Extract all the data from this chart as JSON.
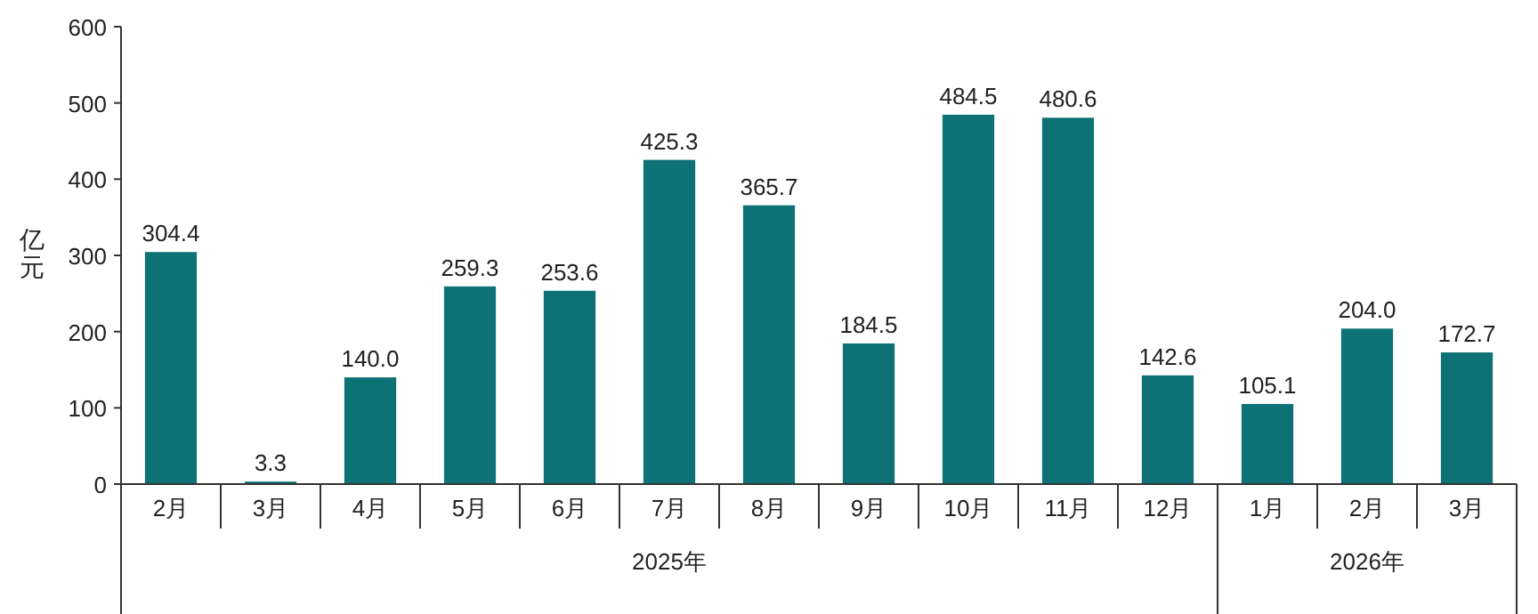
{
  "chart_data": {
    "type": "bar",
    "ylabel": "亿元",
    "categories": [
      "2月",
      "3月",
      "4月",
      "5月",
      "6月",
      "7月",
      "8月",
      "9月",
      "10月",
      "11月",
      "12月",
      "1月",
      "2月",
      "3月"
    ],
    "values": [
      304.4,
      3.3,
      140.0,
      259.3,
      253.6,
      425.3,
      365.7,
      184.5,
      484.5,
      480.6,
      142.6,
      105.1,
      204.0,
      172.7
    ],
    "value_labels": [
      "304.4",
      "3.3",
      "140.0",
      "259.3",
      "253.6",
      "425.3",
      "365.7",
      "184.5",
      "484.5",
      "480.6",
      "142.6",
      "105.1",
      "204.0",
      "172.7"
    ],
    "color": "#0e7175",
    "ylim": [
      0,
      600
    ],
    "yticks": [
      0,
      100,
      200,
      300,
      400,
      500,
      600
    ],
    "grid": false,
    "annotations": [
      "2025年",
      "2026年"
    ]
  }
}
